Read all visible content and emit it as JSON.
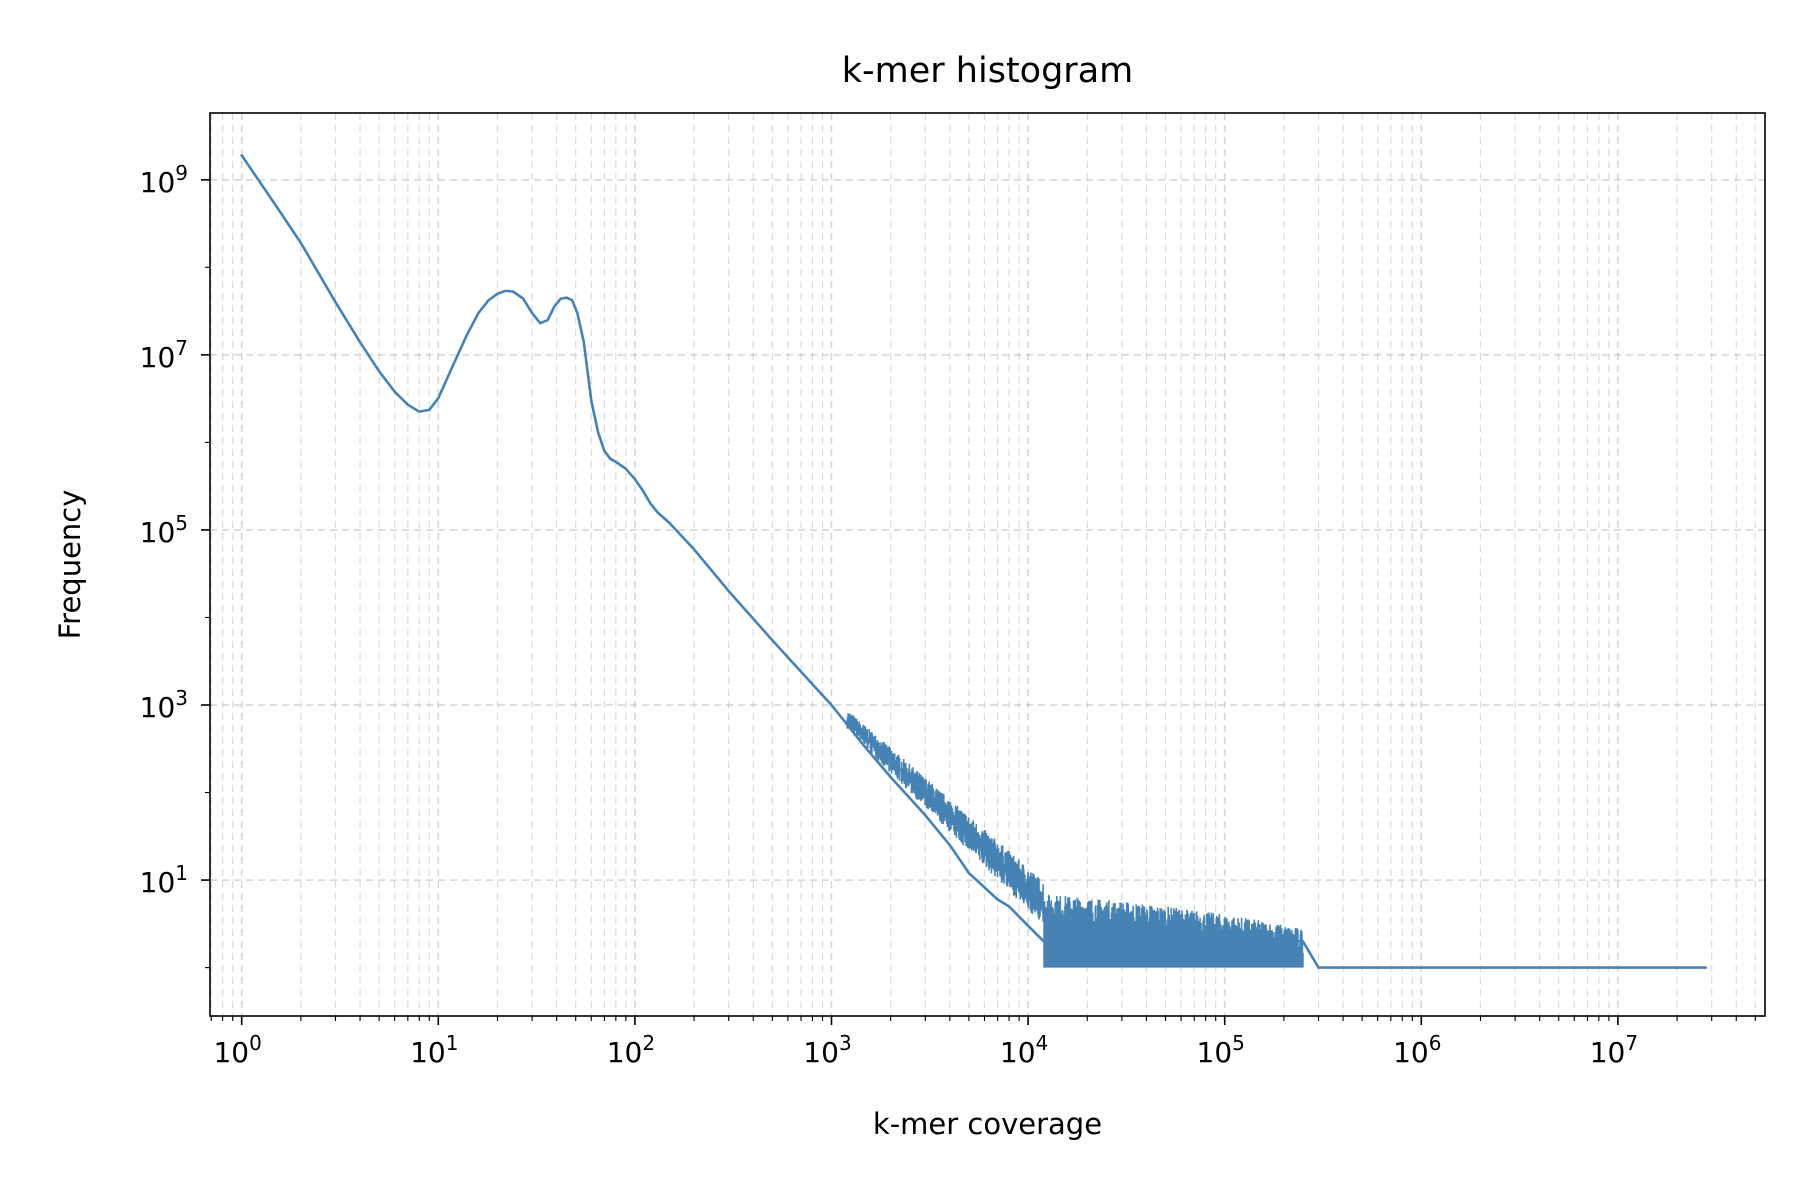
{
  "chart_data": {
    "type": "line",
    "title": "k-mer histogram",
    "xlabel": "k-mer coverage",
    "ylabel": "Frequency",
    "xscale": "log",
    "yscale": "log",
    "xlim": [
      0.69,
      56000000
    ],
    "ylim": [
      0.28,
      5800000000
    ],
    "grid": true,
    "grid_style": "dashed",
    "legend": "none",
    "line_color": "#4682b4",
    "x_ticks": [
      {
        "value": 1,
        "base": "10",
        "exp": "0"
      },
      {
        "value": 10,
        "base": "10",
        "exp": "1"
      },
      {
        "value": 100,
        "base": "10",
        "exp": "2"
      },
      {
        "value": 1000,
        "base": "10",
        "exp": "3"
      },
      {
        "value": 10000,
        "base": "10",
        "exp": "4"
      },
      {
        "value": 100000,
        "base": "10",
        "exp": "5"
      },
      {
        "value": 1000000,
        "base": "10",
        "exp": "6"
      },
      {
        "value": 10000000,
        "base": "10",
        "exp": "7"
      }
    ],
    "y_ticks": [
      {
        "value": 10,
        "base": "10",
        "exp": "1"
      },
      {
        "value": 1000,
        "base": "10",
        "exp": "3"
      },
      {
        "value": 100000,
        "base": "10",
        "exp": "5"
      },
      {
        "value": 10000000,
        "base": "10",
        "exp": "7"
      },
      {
        "value": 1000000000,
        "base": "10",
        "exp": "9"
      }
    ],
    "series": [
      {
        "x": [
          1,
          1.5,
          2,
          3,
          4,
          5,
          6,
          7,
          8,
          9,
          10,
          12,
          14,
          16,
          18,
          20,
          22,
          24,
          27,
          30,
          33,
          36,
          39,
          42,
          45,
          48,
          51,
          55,
          60,
          65,
          70,
          75,
          80,
          90,
          100,
          110,
          120,
          130,
          150,
          200,
          300,
          500,
          700,
          1000,
          1500,
          2000,
          3000,
          4000,
          5000,
          7000,
          8000,
          10000,
          12000,
          15000,
          20000,
          30000,
          50000,
          100000,
          200000,
          250000,
          300000,
          1000000,
          10000000,
          28000000
        ],
        "y": [
          1900000000,
          500000000,
          190000000,
          40000000,
          14000000,
          6500000,
          3800000,
          2700000,
          2250000,
          2350000,
          3200000,
          8000000,
          17000000,
          30000000,
          42000000,
          50000000,
          54000000,
          53000000,
          44000000,
          30000000,
          23000000,
          25000000,
          36000000,
          44000000,
          45000000,
          42000000,
          30000000,
          14000000,
          3000000,
          1300000,
          800000,
          650000,
          600000,
          500000,
          380000,
          280000,
          200000,
          160000,
          120000,
          60000,
          20000,
          5500,
          2400,
          1000,
          320,
          150,
          55,
          25,
          12,
          6,
          5,
          3,
          2,
          2,
          2,
          2,
          2,
          2,
          2,
          2,
          1,
          1,
          1,
          1
        ]
      }
    ]
  }
}
